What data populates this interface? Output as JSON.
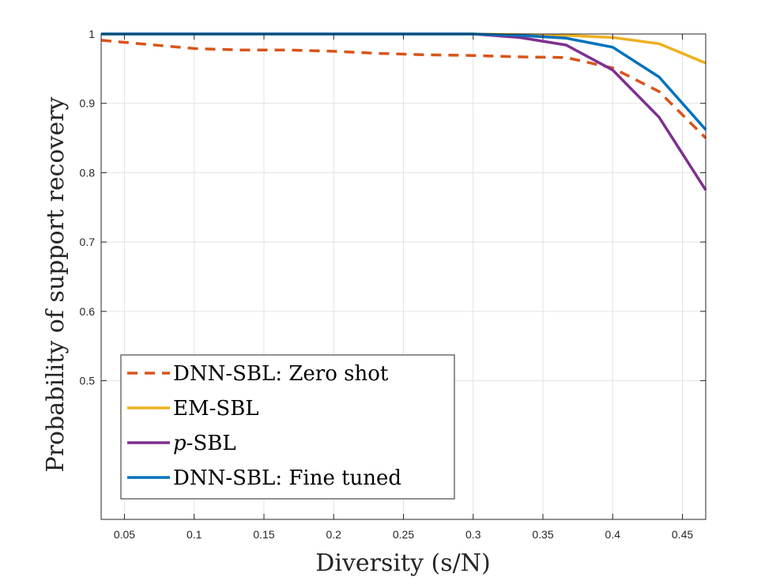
{
  "chart_data": {
    "type": "line",
    "title": "",
    "xlabel": "Diversity (s/N)",
    "ylabel": "Probability of support recovery",
    "xlim": [
      0.0333,
      0.4667
    ],
    "ylim": [
      0.3,
      1.0
    ],
    "xticks": [
      0.05,
      0.1,
      0.15,
      0.2,
      0.25,
      0.3,
      0.35,
      0.4,
      0.45
    ],
    "xtick_labels": [
      "0.05",
      "0.1",
      "0.15",
      "0.2",
      "0.25",
      "0.3",
      "0.35",
      "0.4",
      "0.45"
    ],
    "yticks": [
      0.5,
      0.6,
      0.7,
      0.8,
      0.9,
      1.0
    ],
    "ytick_labels": [
      "0.5",
      "0.6",
      "0.7",
      "0.8",
      "0.9",
      "1"
    ],
    "grid": true,
    "legend_position": "bottom-left",
    "x": [
      0.0333,
      0.0667,
      0.1,
      0.1333,
      0.1667,
      0.2,
      0.2333,
      0.2667,
      0.3,
      0.3333,
      0.3667,
      0.4,
      0.4333,
      0.4667
    ],
    "series": [
      {
        "name": "DNN-SBL: Zero shot",
        "color": "#D95319",
        "dashed": true,
        "values": [
          0.991,
          0.985,
          0.979,
          0.977,
          0.977,
          0.975,
          0.972,
          0.97,
          0.969,
          0.967,
          0.966,
          0.951,
          0.917,
          0.85
        ]
      },
      {
        "name": "EM-SBL",
        "color": "#EDB120",
        "dashed": false,
        "values": [
          1.0,
          1.0,
          1.0,
          1.0,
          1.0,
          1.0,
          1.0,
          1.0,
          1.0,
          0.999,
          0.998,
          0.995,
          0.986,
          0.958
        ]
      },
      {
        "name": "p-SBL",
        "color": "#7E2F8E",
        "dashed": false,
        "values": [
          1.0,
          1.0,
          1.0,
          1.0,
          1.0,
          1.0,
          1.0,
          1.0,
          1.0,
          0.995,
          0.984,
          0.948,
          0.88,
          0.775
        ]
      },
      {
        "name": "DNN-SBL: Fine tuned",
        "color": "#0072BD",
        "dashed": false,
        "values": [
          1.0,
          1.0,
          1.0,
          1.0,
          1.0,
          1.0,
          1.0,
          1.0,
          1.0,
          0.998,
          0.994,
          0.981,
          0.938,
          0.862
        ]
      }
    ]
  }
}
